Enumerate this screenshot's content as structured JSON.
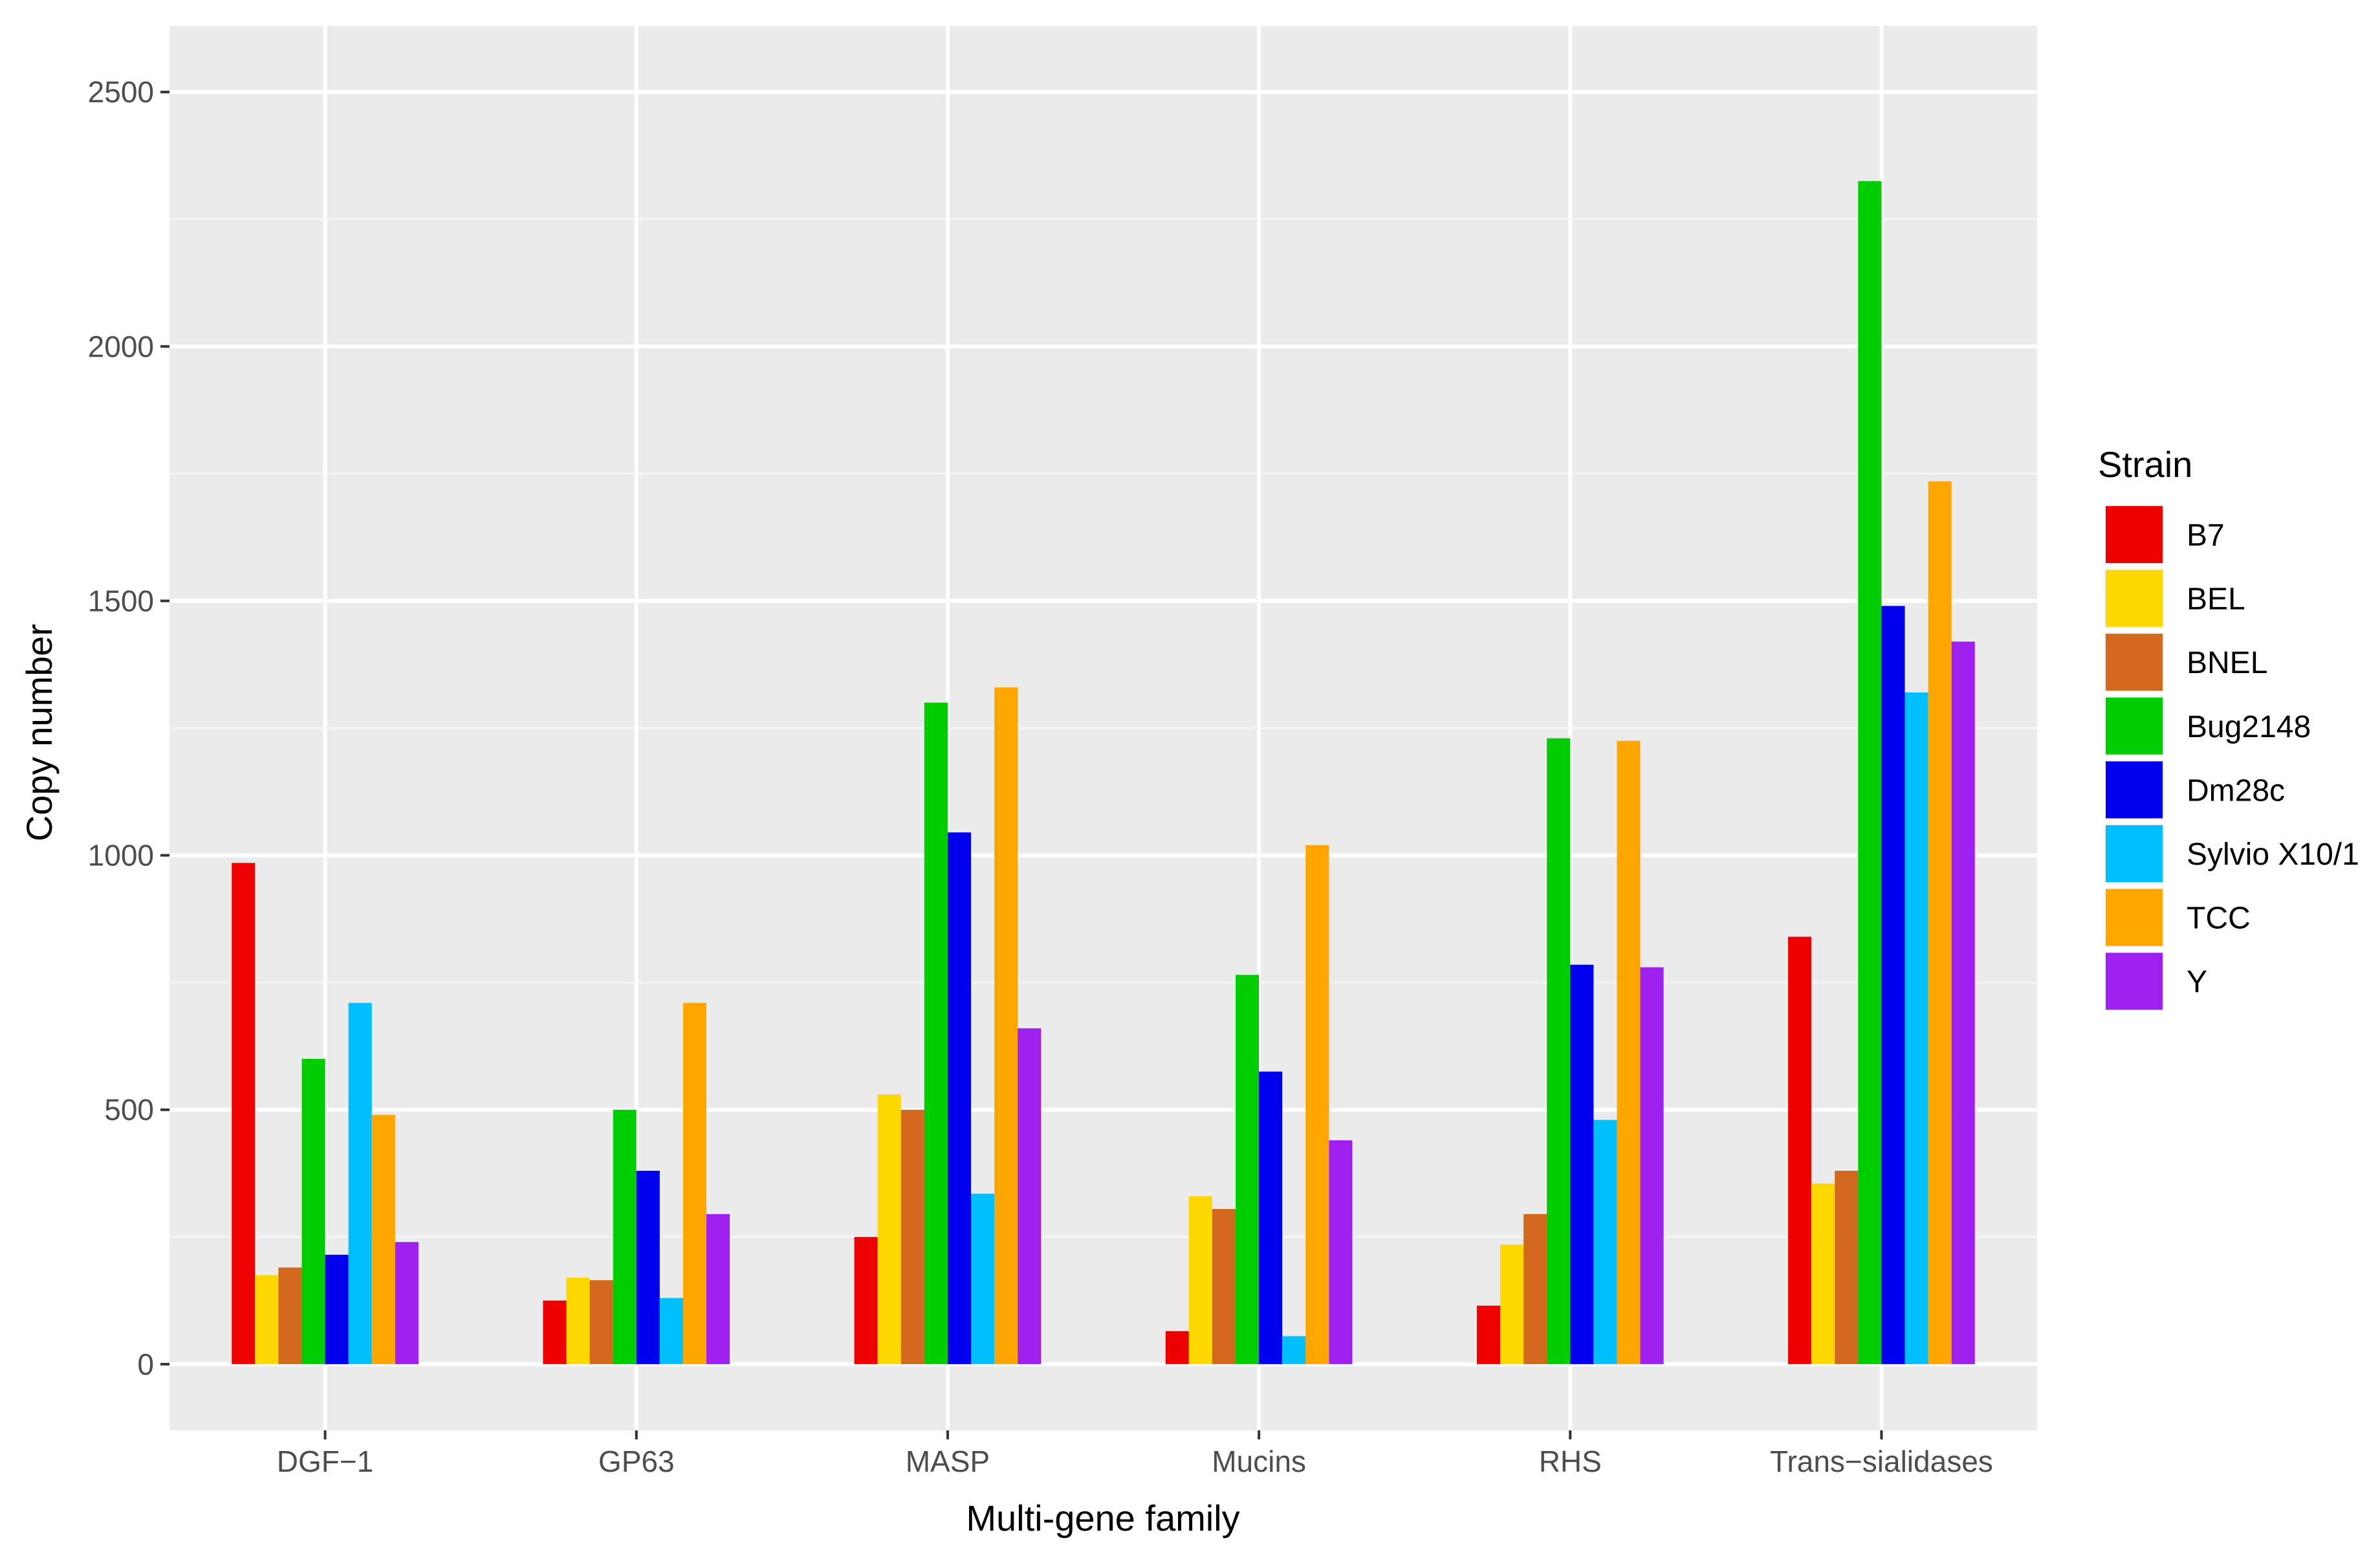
{
  "chart_data": {
    "type": "bar",
    "title": "",
    "xlabel": "Multi-gene family",
    "ylabel": "Copy number",
    "ylim": [
      -130,
      2630
    ],
    "yticks": [
      0,
      500,
      1000,
      1500,
      2000,
      2500
    ],
    "ytick_labels": [
      "0",
      "500",
      "1000",
      "1500",
      "2000",
      "2500"
    ],
    "grid": true,
    "legend_title": "Strain",
    "legend_position": "right",
    "categories": [
      "DGF−1",
      "GP63",
      "MASP",
      "Mucins",
      "RHS",
      "Trans−sialidases"
    ],
    "series": [
      {
        "name": "B7",
        "color": "#ee0000",
        "values": [
          985,
          125,
          250,
          65,
          115,
          840
        ]
      },
      {
        "name": "BEL",
        "color": "#ffd700",
        "values": [
          175,
          170,
          530,
          330,
          235,
          355
        ]
      },
      {
        "name": "BNEL",
        "color": "#d2691e",
        "values": [
          190,
          165,
          500,
          305,
          295,
          380
        ]
      },
      {
        "name": "Bug2148",
        "color": "#00cd00",
        "values": [
          600,
          500,
          1300,
          765,
          1230,
          2325
        ]
      },
      {
        "name": "Dm28c",
        "color": "#0000ee",
        "values": [
          215,
          380,
          1045,
          575,
          785,
          1490
        ]
      },
      {
        "name": "Sylvio X10/1",
        "color": "#00bfff",
        "values": [
          710,
          130,
          335,
          55,
          480,
          1320
        ]
      },
      {
        "name": "TCC",
        "color": "#ffa500",
        "values": [
          490,
          710,
          1330,
          1020,
          1225,
          1735
        ]
      },
      {
        "name": "Y",
        "color": "#a020f0",
        "values": [
          240,
          295,
          660,
          440,
          780,
          1420
        ]
      }
    ]
  },
  "colors": {
    "panel_background": "#ebebeb",
    "grid_major": "#ffffff",
    "grid_minor": "#f5f5f5",
    "tick_color": "#333333"
  }
}
